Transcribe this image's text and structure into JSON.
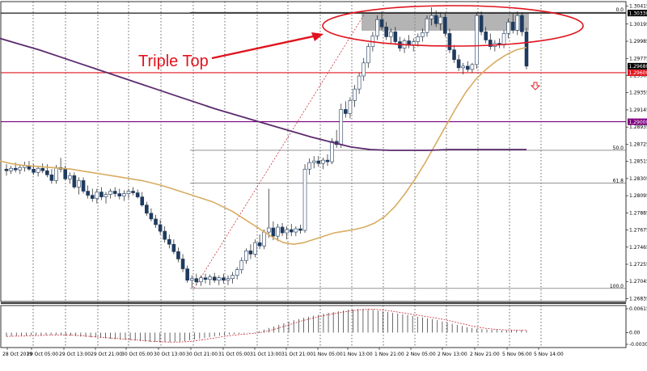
{
  "chart_data": {
    "type": "candlestick",
    "title": "",
    "annotation": {
      "text": "Triple Top",
      "color": "#e0141e"
    },
    "price_axis": {
      "range": [
        1.268,
        1.3047
      ],
      "ticks": [
        "1.30415",
        "1.30195",
        "1.29985",
        "1.29775",
        "1.29565",
        "1.29355",
        "1.29145",
        "1.28935",
        "1.28725",
        "1.28515",
        "1.28305",
        "1.28095",
        "1.27885",
        "1.27675",
        "1.27465",
        "1.27255",
        "1.27045",
        "1.26835"
      ],
      "tick_values": [
        1.30415,
        1.30195,
        1.29985,
        1.29775,
        1.29565,
        1.29355,
        1.29145,
        1.28935,
        1.28725,
        1.28515,
        1.28305,
        1.28095,
        1.27885,
        1.27675,
        1.27465,
        1.27255,
        1.27045,
        1.26835
      ]
    },
    "price_labels": [
      {
        "text": "1.30330",
        "value": 1.3033,
        "style": "black"
      },
      {
        "text": "1.29680",
        "value": 1.2968,
        "style": "black"
      },
      {
        "text": "1.29600",
        "value": 1.296,
        "style": "red"
      },
      {
        "text": "1.29000",
        "value": 1.29,
        "style": "purple"
      }
    ],
    "horizontal_lines": [
      {
        "value": 1.3033,
        "color": "#000000",
        "name": "resistance"
      },
      {
        "value": 1.296,
        "color": "#e0141e",
        "name": "support"
      },
      {
        "value": 1.29,
        "color": "#800080",
        "name": "level-1.29000"
      }
    ],
    "fibonacci": [
      {
        "label": "0.0",
        "value": 1.3034
      },
      {
        "label": "50.0",
        "value": 1.2865
      },
      {
        "label": "61.8",
        "value": 1.2825
      },
      {
        "label": "100.0",
        "value": 1.2696
      }
    ],
    "x_axis": {
      "labels": [
        "28 Oct 2019",
        "29 Oct 05:00",
        "29 Oct 13:00",
        "29 Oct 21:00",
        "30 Oct 05:00",
        "30 Oct 13:00",
        "30 Oct 21:00",
        "31 Oct 05:00",
        "31 Oct 13:00",
        "31 Oct 21:00",
        "1 Nov 05:00",
        "1 Nov 13:00",
        "1 Nov 21:00",
        "2 Nov 05:00",
        "2 Nov 13:00",
        "2 Nov 21:00",
        "5 Nov 06:00",
        "5 Nov 14:00"
      ]
    },
    "candles": [
      [
        1.2842,
        1.2848,
        1.2834,
        1.284
      ],
      [
        1.284,
        1.2846,
        1.2836,
        1.2843
      ],
      [
        1.2843,
        1.285,
        1.2838,
        1.2841
      ],
      [
        1.2841,
        1.2848,
        1.2836,
        1.2844
      ],
      [
        1.2844,
        1.2851,
        1.2839,
        1.2846
      ],
      [
        1.2846,
        1.2852,
        1.284,
        1.2842
      ],
      [
        1.2842,
        1.2848,
        1.2835,
        1.2838
      ],
      [
        1.2838,
        1.2846,
        1.2833,
        1.2843
      ],
      [
        1.2843,
        1.2849,
        1.2837,
        1.284
      ],
      [
        1.284,
        1.2848,
        1.2832,
        1.2835
      ],
      [
        1.2835,
        1.2842,
        1.2824,
        1.2828
      ],
      [
        1.2828,
        1.2847,
        1.2824,
        1.2844
      ],
      [
        1.2844,
        1.2856,
        1.2838,
        1.2842
      ],
      [
        1.2842,
        1.2846,
        1.2828,
        1.283
      ],
      [
        1.283,
        1.2838,
        1.2824,
        1.2834
      ],
      [
        1.2834,
        1.2838,
        1.2818,
        1.282
      ],
      [
        1.282,
        1.2832,
        1.2811,
        1.2828
      ],
      [
        1.2828,
        1.2832,
        1.2812,
        1.2815
      ],
      [
        1.2815,
        1.2822,
        1.2806,
        1.281
      ],
      [
        1.281,
        1.2818,
        1.2802,
        1.2806
      ],
      [
        1.2806,
        1.2818,
        1.28,
        1.2814
      ],
      [
        1.2814,
        1.282,
        1.2804,
        1.2808
      ],
      [
        1.2808,
        1.2814,
        1.28,
        1.2811
      ],
      [
        1.2811,
        1.2818,
        1.2806,
        1.2815
      ],
      [
        1.2815,
        1.282,
        1.2808,
        1.2812
      ],
      [
        1.2812,
        1.2818,
        1.2805,
        1.2809
      ],
      [
        1.2809,
        1.2816,
        1.2803,
        1.2812
      ],
      [
        1.2812,
        1.2818,
        1.2806,
        1.2815
      ],
      [
        1.2815,
        1.282,
        1.281,
        1.2813
      ],
      [
        1.2813,
        1.2817,
        1.2806,
        1.2808
      ],
      [
        1.2808,
        1.2814,
        1.2796,
        1.2798
      ],
      [
        1.2798,
        1.2802,
        1.2785,
        1.2788
      ],
      [
        1.2788,
        1.2794,
        1.2778,
        1.2781
      ],
      [
        1.2781,
        1.2786,
        1.277,
        1.2774
      ],
      [
        1.2774,
        1.278,
        1.2762,
        1.2766
      ],
      [
        1.2766,
        1.2772,
        1.2752,
        1.2756
      ],
      [
        1.2756,
        1.2762,
        1.2745,
        1.275
      ],
      [
        1.275,
        1.2756,
        1.2738,
        1.2741
      ],
      [
        1.2741,
        1.2746,
        1.2728,
        1.2732
      ],
      [
        1.2732,
        1.2738,
        1.2716,
        1.272
      ],
      [
        1.272,
        1.2724,
        1.2703,
        1.2706
      ],
      [
        1.2706,
        1.2712,
        1.2697,
        1.2708
      ],
      [
        1.2708,
        1.2714,
        1.27,
        1.2704
      ],
      [
        1.2704,
        1.2712,
        1.2699,
        1.2709
      ],
      [
        1.2709,
        1.2714,
        1.2702,
        1.2707
      ],
      [
        1.2707,
        1.2713,
        1.27,
        1.271
      ],
      [
        1.271,
        1.2715,
        1.2703,
        1.2706
      ],
      [
        1.2706,
        1.2712,
        1.27,
        1.2709
      ],
      [
        1.2709,
        1.2714,
        1.2702,
        1.2706
      ],
      [
        1.2706,
        1.2712,
        1.27,
        1.2708
      ],
      [
        1.2708,
        1.2716,
        1.2702,
        1.2712
      ],
      [
        1.2712,
        1.2722,
        1.2707,
        1.2719
      ],
      [
        1.2719,
        1.2734,
        1.2714,
        1.273
      ],
      [
        1.273,
        1.2745,
        1.2726,
        1.2742
      ],
      [
        1.2742,
        1.275,
        1.2732,
        1.2738
      ],
      [
        1.2738,
        1.2756,
        1.2734,
        1.2752
      ],
      [
        1.2752,
        1.2762,
        1.2744,
        1.2748
      ],
      [
        1.2748,
        1.2768,
        1.2744,
        1.2765
      ],
      [
        1.2765,
        1.2818,
        1.2758,
        1.277
      ],
      [
        1.277,
        1.2778,
        1.2755,
        1.276
      ],
      [
        1.276,
        1.2775,
        1.2754,
        1.2771
      ],
      [
        1.2771,
        1.2776,
        1.276,
        1.2764
      ],
      [
        1.2764,
        1.2772,
        1.2756,
        1.2768
      ],
      [
        1.2768,
        1.2775,
        1.276,
        1.2765
      ],
      [
        1.2765,
        1.2772,
        1.276,
        1.2769
      ],
      [
        1.2769,
        1.2774,
        1.2763,
        1.2767
      ],
      [
        1.2767,
        1.2848,
        1.2764,
        1.2842
      ],
      [
        1.2842,
        1.2855,
        1.2835,
        1.285
      ],
      [
        1.285,
        1.2858,
        1.2843,
        1.2852
      ],
      [
        1.2852,
        1.2858,
        1.2845,
        1.2849
      ],
      [
        1.2849,
        1.2856,
        1.2842,
        1.2853
      ],
      [
        1.2853,
        1.286,
        1.2846,
        1.2851
      ],
      [
        1.2851,
        1.288,
        1.2848,
        1.2876
      ],
      [
        1.2876,
        1.289,
        1.2868,
        1.2872
      ],
      [
        1.2872,
        1.2922,
        1.2868,
        1.2915
      ],
      [
        1.2915,
        1.2925,
        1.2905,
        1.291
      ],
      [
        1.291,
        1.293,
        1.2904,
        1.2926
      ],
      [
        1.2926,
        1.2945,
        1.2918,
        1.294
      ],
      [
        1.294,
        1.296,
        1.2934,
        1.2956
      ],
      [
        1.2956,
        1.2978,
        1.295,
        1.2972
      ],
      [
        1.2972,
        1.2996,
        1.2966,
        1.2992
      ],
      [
        1.2992,
        1.301,
        1.2986,
        1.3005
      ],
      [
        1.3005,
        1.303,
        1.3,
        1.3025
      ],
      [
        1.3025,
        1.3035,
        1.3012,
        1.3016
      ],
      [
        1.3016,
        1.3022,
        1.3,
        1.3004
      ],
      [
        1.3004,
        1.3014,
        1.2996,
        1.301
      ],
      [
        1.301,
        1.3016,
        1.2994,
        1.2998
      ],
      [
        1.2998,
        1.3004,
        1.2986,
        1.299
      ],
      [
        1.299,
        1.3002,
        1.2984,
        1.2999
      ],
      [
        1.2999,
        1.3006,
        1.299,
        1.2994
      ],
      [
        1.2994,
        1.3002,
        1.2986,
        1.2998
      ],
      [
        1.2998,
        1.3008,
        1.2992,
        1.3004
      ],
      [
        1.3004,
        1.3014,
        1.2998,
        1.3009
      ],
      [
        1.3009,
        1.303,
        1.3004,
        1.3026
      ],
      [
        1.3026,
        1.304,
        1.3018,
        1.303
      ],
      [
        1.303,
        1.3036,
        1.3016,
        1.302
      ],
      [
        1.302,
        1.3034,
        1.3012,
        1.3028
      ],
      [
        1.3028,
        1.3033,
        1.3004,
        1.3008
      ],
      [
        1.3008,
        1.3014,
        1.2984,
        1.2988
      ],
      [
        1.2988,
        1.2994,
        1.2972,
        1.2976
      ],
      [
        1.2976,
        1.2982,
        1.2962,
        1.2966
      ],
      [
        1.2966,
        1.2972,
        1.2958,
        1.2968
      ],
      [
        1.2968,
        1.2974,
        1.2961,
        1.2964
      ],
      [
        1.2964,
        1.2972,
        1.296,
        1.297
      ],
      [
        1.297,
        1.3034,
        1.2965,
        1.303
      ],
      [
        1.303,
        1.3035,
        1.3006,
        1.301
      ],
      [
        1.301,
        1.3016,
        1.2996,
        1.3
      ],
      [
        1.3,
        1.3008,
        1.2988,
        1.2992
      ],
      [
        1.2992,
        1.3,
        1.2986,
        1.2996
      ],
      [
        1.2996,
        1.3002,
        1.299,
        1.2994
      ],
      [
        1.2994,
        1.3012,
        1.299,
        1.3008
      ],
      [
        1.3008,
        1.3026,
        1.3002,
        1.3022
      ],
      [
        1.3022,
        1.3032,
        1.3008,
        1.3012
      ],
      [
        1.3012,
        1.3035,
        1.3006,
        1.303
      ],
      [
        1.303,
        1.3034,
        1.3005,
        1.301
      ],
      [
        1.301,
        1.3015,
        1.2964,
        1.2968
      ]
    ],
    "ma_fast": [
      1.2852,
      1.2849,
      1.2847,
      1.2846,
      1.2845,
      1.2844,
      1.2843,
      1.2842,
      1.284,
      1.2838,
      1.2836,
      1.2834,
      1.2832,
      1.283,
      1.2828,
      1.2825,
      1.2822,
      1.2818,
      1.2814,
      1.281,
      1.2806,
      1.2802,
      1.2796,
      1.279,
      1.2782,
      1.2774,
      1.2766,
      1.2758,
      1.2752,
      1.275,
      1.2752,
      1.2756,
      1.276,
      1.2764,
      1.2766,
      1.2768,
      1.2771,
      1.2776,
      1.2784,
      1.2796,
      1.2812,
      1.283,
      1.285,
      1.2872,
      1.2894,
      1.2916,
      1.2936,
      1.2952,
      1.2964,
      1.2974,
      1.2982,
      1.2988,
      1.2991
    ],
    "ma_slow": [
      1.3002,
      1.2995,
      1.2988,
      1.298,
      1.2972,
      1.2964,
      1.2956,
      1.2948,
      1.294,
      1.2932,
      1.2924,
      1.2916,
      1.2909,
      1.2902,
      1.2895,
      1.2888,
      1.2881,
      1.2875,
      1.2869,
      1.2866,
      1.2865,
      1.2865,
      1.2865,
      1.2866,
      1.2866,
      1.2866,
      1.2866,
      1.2866
    ],
    "macd_axis": {
      "ticks": [
        "0.006154",
        "0.00",
        "-0.003038"
      ],
      "tick_values": [
        0.006154,
        0.0,
        -0.003038
      ]
    },
    "macd_hist": [
      -0.001,
      -0.0009,
      -0.0009,
      -0.0008,
      -0.0008,
      -0.0007,
      -0.0007,
      -0.0007,
      -0.0006,
      -0.0006,
      -0.0006,
      -0.0006,
      -0.0007,
      -0.0008,
      -0.0009,
      -0.001,
      -0.0011,
      -0.0012,
      -0.0013,
      -0.0014,
      -0.0015,
      -0.0016,
      -0.0017,
      -0.0018,
      -0.0019,
      -0.002,
      -0.0021,
      -0.0022,
      -0.0023,
      -0.0024,
      -0.0024,
      -0.0025,
      -0.0025,
      -0.0025,
      -0.0024,
      -0.0023,
      -0.0022,
      -0.002,
      -0.0018,
      -0.0016,
      -0.0014,
      -0.0012,
      -0.001,
      -0.0008,
      -0.0006,
      -0.0005,
      -0.0004,
      -0.0003,
      -0.0002,
      -0.0001,
      0.0001,
      0.0004,
      0.0008,
      0.0012,
      0.0016,
      0.002,
      0.0024,
      0.0028,
      0.0032,
      0.0035,
      0.0038,
      0.0041,
      0.0044,
      0.0046,
      0.0049,
      0.0051,
      0.0053,
      0.0055,
      0.0057,
      0.0059,
      0.006,
      0.0061,
      0.0061,
      0.006,
      0.0059,
      0.0057,
      0.0055,
      0.0053,
      0.0051,
      0.0049,
      0.0047,
      0.0045,
      0.0043,
      0.0041,
      0.0039,
      0.0037,
      0.0035,
      0.0032,
      0.0029,
      0.0026,
      0.0023,
      0.002,
      0.0017,
      0.0014,
      0.0012,
      0.001,
      0.0009,
      0.0008,
      0.0007,
      0.0007,
      0.0006,
      0.0006,
      0.0006,
      0.0006,
      0.0006,
      0.0005
    ]
  }
}
